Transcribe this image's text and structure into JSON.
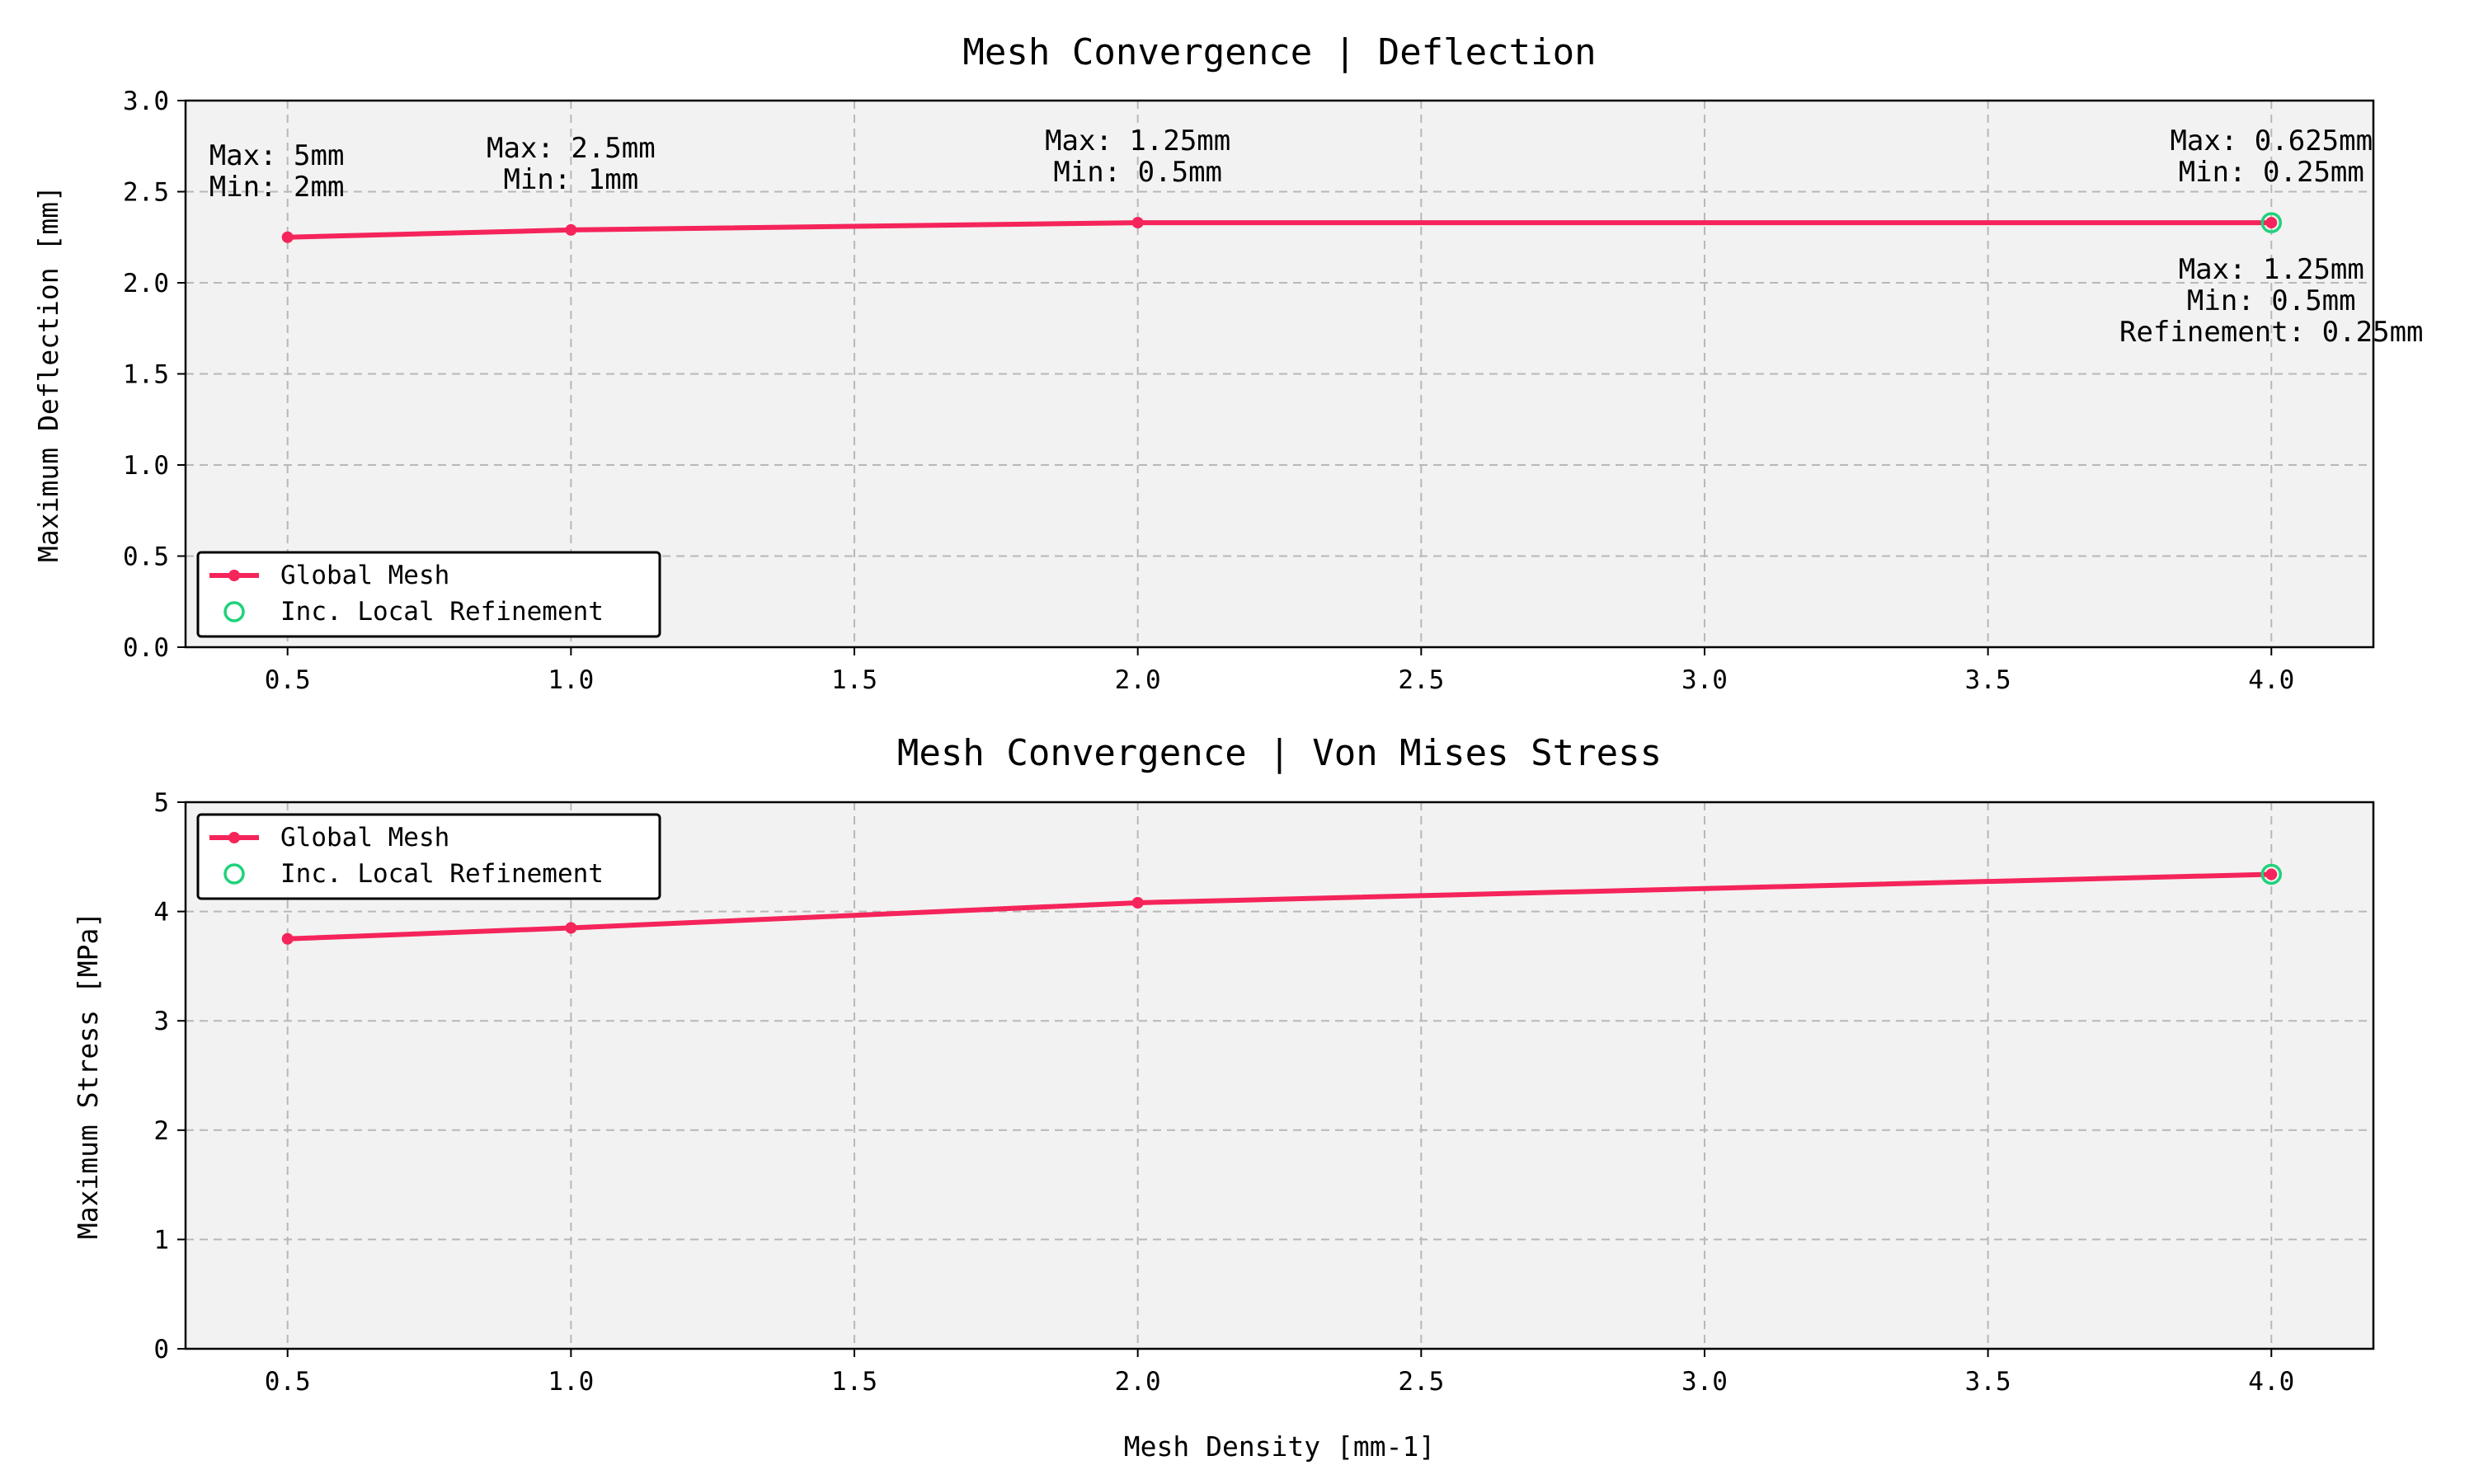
{
  "chart_data": [
    {
      "type": "line",
      "title": "Mesh Convergence | Deflection",
      "xlabel": "",
      "ylabel": "Maximum Deflection [mm]",
      "xlim": [
        0.32,
        4.18
      ],
      "ylim": [
        0.0,
        3.0
      ],
      "xticks": [
        "0.5",
        "1.0",
        "1.5",
        "2.0",
        "2.5",
        "3.0",
        "3.5",
        "4.0"
      ],
      "yticks": [
        "0.0",
        "0.5",
        "1.0",
        "1.5",
        "2.0",
        "2.5",
        "3.0"
      ],
      "grid": true,
      "legend_position": "lower-left",
      "series": [
        {
          "name": "Global Mesh",
          "kind": "line",
          "color": "#f5245a",
          "x": [
            0.5,
            1.0,
            2.0,
            4.0
          ],
          "y": [
            2.25,
            2.29,
            2.33,
            2.33
          ]
        },
        {
          "name": "Inc. Local Refinement",
          "kind": "marker",
          "color": "#1fd27a",
          "x": [
            4.0
          ],
          "y": [
            2.33
          ]
        }
      ],
      "annotations": [
        {
          "x": 0.5,
          "y": 2.25,
          "lines": [
            "Max: 5mm",
            "Min: 2mm"
          ],
          "anchor": "start"
        },
        {
          "x": 1.0,
          "y": 2.29,
          "lines": [
            "Max: 2.5mm",
            "Min: 1mm"
          ],
          "anchor": "middle"
        },
        {
          "x": 2.0,
          "y": 2.33,
          "lines": [
            "Max: 1.25mm",
            "Min: 0.5mm"
          ],
          "anchor": "middle"
        },
        {
          "x": 4.0,
          "y": 2.33,
          "lines": [
            "Max: 0.625mm",
            "Min: 0.25mm"
          ],
          "anchor": "middle"
        },
        {
          "x": 4.0,
          "y": 2.33,
          "lines": [
            "Max: 1.25mm",
            "Min: 0.5mm",
            "Refinement: 0.25mm"
          ],
          "anchor": "middle",
          "below": true
        }
      ]
    },
    {
      "type": "line",
      "title": "Mesh Convergence | Von Mises Stress",
      "xlabel": "Mesh Density [mm-1]",
      "ylabel": "Maximum Stress [MPa]",
      "xlim": [
        0.32,
        4.18
      ],
      "ylim": [
        0,
        5
      ],
      "xticks": [
        "0.5",
        "1.0",
        "1.5",
        "2.0",
        "2.5",
        "3.0",
        "3.5",
        "4.0"
      ],
      "yticks": [
        "0",
        "1",
        "2",
        "3",
        "4",
        "5"
      ],
      "grid": true,
      "legend_position": "upper-left",
      "series": [
        {
          "name": "Global Mesh",
          "kind": "line",
          "color": "#f5245a",
          "x": [
            0.5,
            1.0,
            2.0,
            4.0
          ],
          "y": [
            3.75,
            3.85,
            4.08,
            4.34
          ]
        },
        {
          "name": "Inc. Local Refinement",
          "kind": "marker",
          "color": "#1fd27a",
          "x": [
            4.0
          ],
          "y": [
            4.34
          ]
        }
      ],
      "annotations": []
    }
  ]
}
